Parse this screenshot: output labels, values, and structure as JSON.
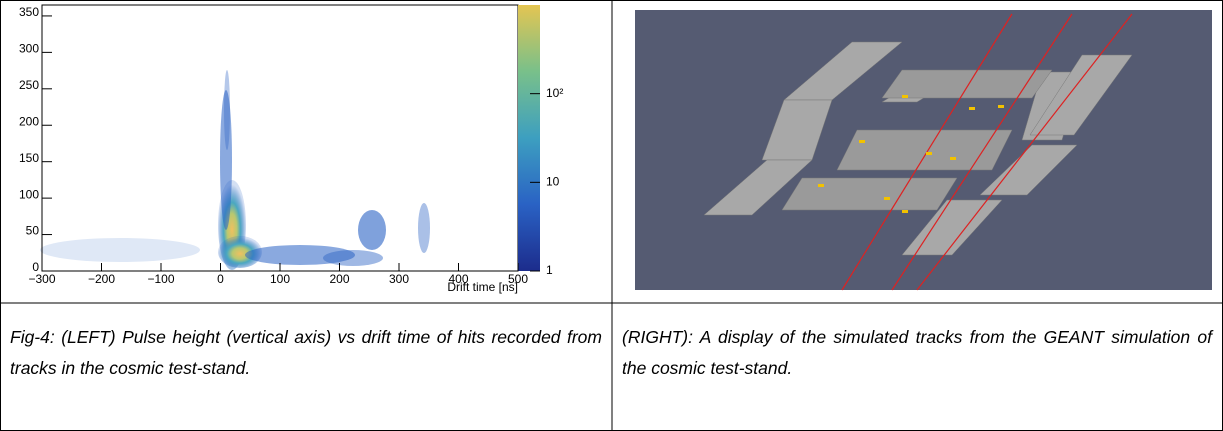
{
  "left_plot": {
    "type": "histogram2d",
    "x_label": "Drift time [ns]",
    "xlim": [
      -300,
      500
    ],
    "xticks": [
      {
        "value": -300,
        "label": "−300"
      },
      {
        "value": -200,
        "label": "−200"
      },
      {
        "value": -100,
        "label": "−100"
      },
      0,
      100,
      200,
      300,
      400,
      500
    ],
    "ylim": [
      0,
      365
    ],
    "yticks": [
      0,
      50,
      100,
      150,
      200,
      250,
      300,
      350
    ],
    "colorbar_lim": [
      1,
      1000
    ],
    "colorbar_log": true,
    "colorbar_ticks": [
      1,
      10,
      {
        "value": 100,
        "label": "10²"
      }
    ]
  },
  "captions": [
    "Fig-4: (LEFT) Pulse height (vertical axis) vs drift time of hits recorded from tracks in the cosmic test-stand.",
    "(RIGHT): A display of the simulated tracks from the GEANT simulation of the cosmic test-stand."
  ]
}
